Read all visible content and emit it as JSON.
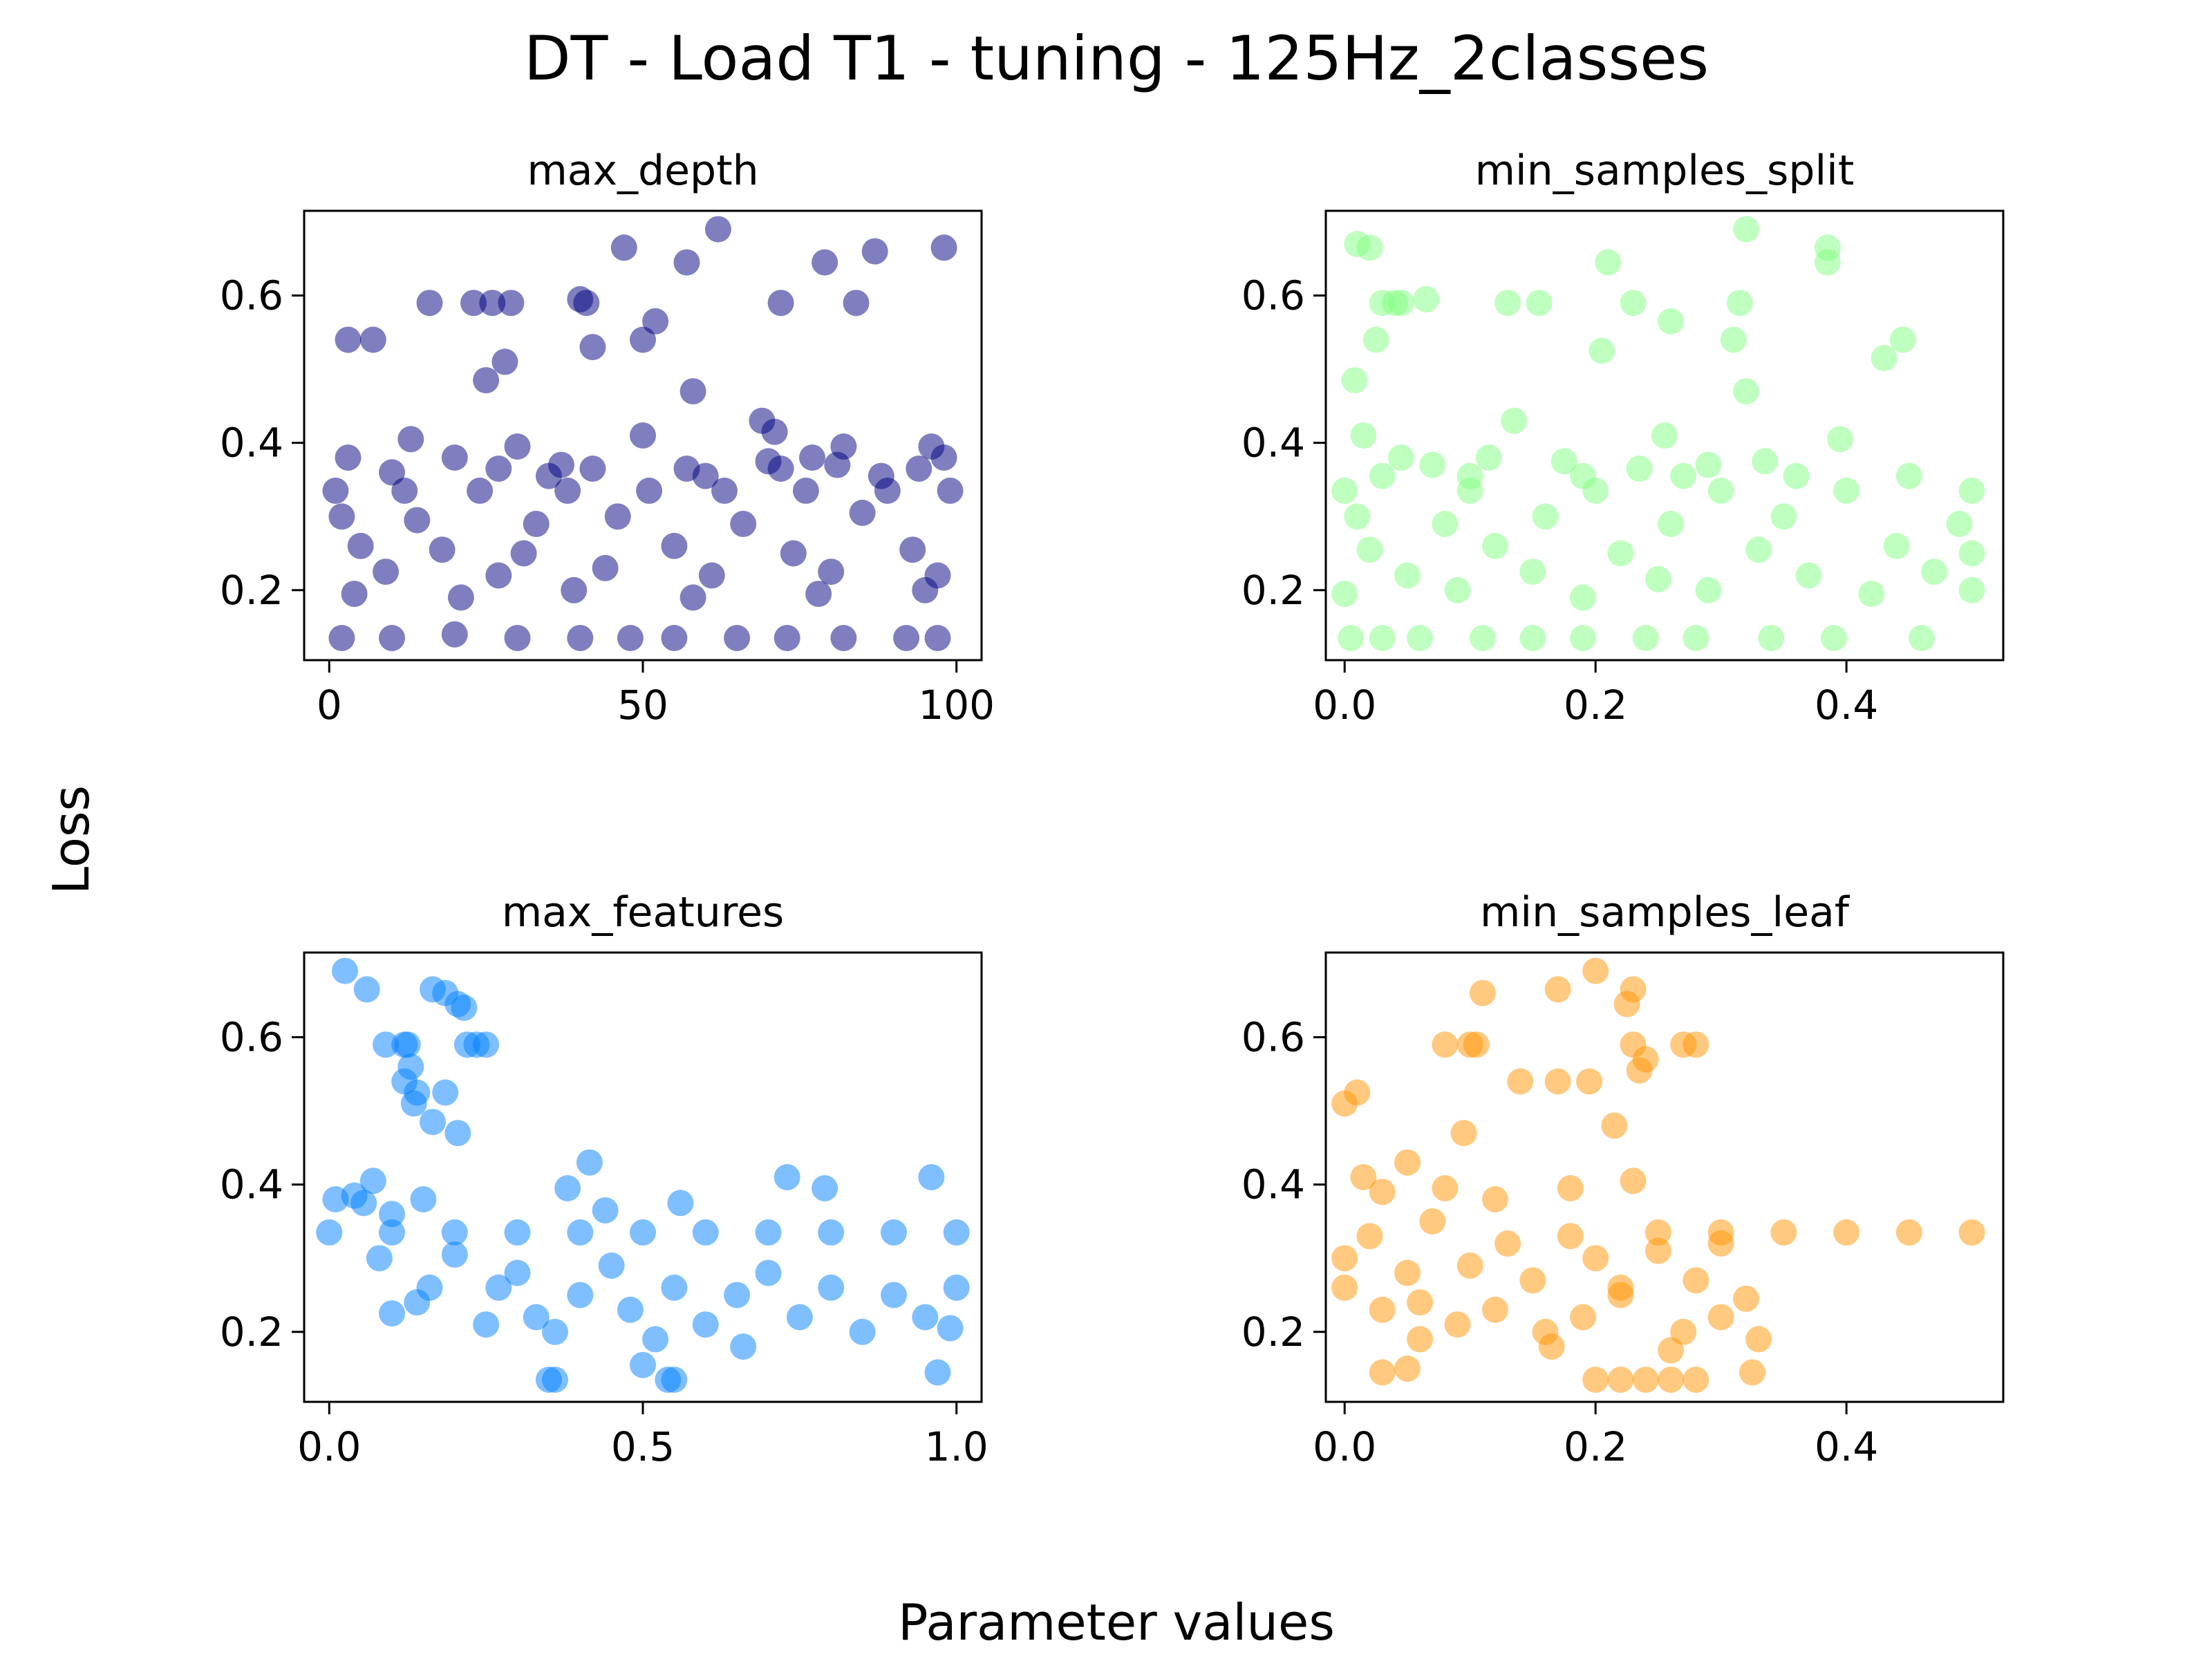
{
  "figure": {
    "title": "DT - Load T1 - tuning - 125Hz_2classes",
    "xlabel": "Parameter values",
    "ylabel": "Loss"
  },
  "chart_data": [
    {
      "type": "scatter",
      "title": "max_depth",
      "color": "#000080",
      "xlim": [
        -4,
        104
      ],
      "ylim": [
        0.105,
        0.715
      ],
      "xticks": [
        0,
        50,
        100
      ],
      "xtick_labels": [
        "0",
        "50",
        "100"
      ],
      "yticks": [
        0.2,
        0.4,
        0.6
      ],
      "ytick_labels": [
        "0.2",
        "0.4",
        "0.6"
      ],
      "grid": false,
      "points": [
        [
          3,
          0.54
        ],
        [
          7,
          0.54
        ],
        [
          16,
          0.59
        ],
        [
          23,
          0.59
        ],
        [
          26,
          0.59
        ],
        [
          29,
          0.59
        ],
        [
          40,
          0.595
        ],
        [
          41,
          0.59
        ],
        [
          25,
          0.485
        ],
        [
          28,
          0.51
        ],
        [
          42,
          0.53
        ],
        [
          50,
          0.54
        ],
        [
          52,
          0.565
        ],
        [
          47,
          0.665
        ],
        [
          57,
          0.645
        ],
        [
          62,
          0.69
        ],
        [
          58,
          0.47
        ],
        [
          72,
          0.59
        ],
        [
          79,
          0.645
        ],
        [
          84,
          0.59
        ],
        [
          87,
          0.66
        ],
        [
          98,
          0.665
        ],
        [
          13,
          0.405
        ],
        [
          50,
          0.41
        ],
        [
          69,
          0.43
        ],
        [
          71,
          0.415
        ],
        [
          96,
          0.395
        ],
        [
          3,
          0.38
        ],
        [
          20,
          0.38
        ],
        [
          27,
          0.365
        ],
        [
          30,
          0.395
        ],
        [
          37,
          0.37
        ],
        [
          42,
          0.365
        ],
        [
          57,
          0.365
        ],
        [
          70,
          0.375
        ],
        [
          72,
          0.365
        ],
        [
          77,
          0.38
        ],
        [
          82,
          0.395
        ],
        [
          81,
          0.37
        ],
        [
          94,
          0.365
        ],
        [
          98,
          0.38
        ],
        [
          10,
          0.36
        ],
        [
          35,
          0.355
        ],
        [
          60,
          0.355
        ],
        [
          88,
          0.355
        ],
        [
          1,
          0.335
        ],
        [
          12,
          0.335
        ],
        [
          24,
          0.335
        ],
        [
          38,
          0.335
        ],
        [
          51,
          0.335
        ],
        [
          63,
          0.335
        ],
        [
          76,
          0.335
        ],
        [
          89,
          0.335
        ],
        [
          99,
          0.335
        ],
        [
          2,
          0.3
        ],
        [
          14,
          0.295
        ],
        [
          33,
          0.29
        ],
        [
          46,
          0.3
        ],
        [
          66,
          0.29
        ],
        [
          85,
          0.305
        ],
        [
          5,
          0.26
        ],
        [
          18,
          0.255
        ],
        [
          31,
          0.25
        ],
        [
          55,
          0.26
        ],
        [
          74,
          0.25
        ],
        [
          93,
          0.255
        ],
        [
          9,
          0.225
        ],
        [
          27,
          0.22
        ],
        [
          44,
          0.23
        ],
        [
          61,
          0.22
        ],
        [
          80,
          0.225
        ],
        [
          97,
          0.22
        ],
        [
          4,
          0.195
        ],
        [
          21,
          0.19
        ],
        [
          39,
          0.2
        ],
        [
          58,
          0.19
        ],
        [
          78,
          0.195
        ],
        [
          95,
          0.2
        ],
        [
          2,
          0.135
        ],
        [
          10,
          0.135
        ],
        [
          20,
          0.14
        ],
        [
          30,
          0.135
        ],
        [
          40,
          0.135
        ],
        [
          48,
          0.135
        ],
        [
          55,
          0.135
        ],
        [
          65,
          0.135
        ],
        [
          73,
          0.135
        ],
        [
          82,
          0.135
        ],
        [
          92,
          0.135
        ],
        [
          97,
          0.135
        ]
      ]
    },
    {
      "type": "scatter",
      "title": "min_samples_split",
      "color": "#80ff80",
      "xlim": [
        -0.015,
        0.525
      ],
      "ylim": [
        0.105,
        0.715
      ],
      "xticks": [
        0.0,
        0.2,
        0.4
      ],
      "xtick_labels": [
        "0.0",
        "0.2",
        "0.4"
      ],
      "yticks": [
        0.2,
        0.4,
        0.6
      ],
      "ytick_labels": [
        "0.2",
        "0.4",
        "0.6"
      ],
      "grid": false,
      "points": [
        [
          0.01,
          0.67
        ],
        [
          0.02,
          0.665
        ],
        [
          0.03,
          0.59
        ],
        [
          0.04,
          0.59
        ],
        [
          0.045,
          0.59
        ],
        [
          0.065,
          0.595
        ],
        [
          0.13,
          0.59
        ],
        [
          0.155,
          0.59
        ],
        [
          0.21,
          0.645
        ],
        [
          0.23,
          0.59
        ],
        [
          0.26,
          0.565
        ],
        [
          0.315,
          0.59
        ],
        [
          0.32,
          0.69
        ],
        [
          0.385,
          0.665
        ],
        [
          0.385,
          0.645
        ],
        [
          0.025,
          0.54
        ],
        [
          0.008,
          0.485
        ],
        [
          0.205,
          0.525
        ],
        [
          0.31,
          0.54
        ],
        [
          0.43,
          0.515
        ],
        [
          0.445,
          0.54
        ],
        [
          0.32,
          0.47
        ],
        [
          0.015,
          0.41
        ],
        [
          0.045,
          0.38
        ],
        [
          0.135,
          0.43
        ],
        [
          0.255,
          0.41
        ],
        [
          0.395,
          0.405
        ],
        [
          0.07,
          0.37
        ],
        [
          0.115,
          0.38
        ],
        [
          0.175,
          0.375
        ],
        [
          0.235,
          0.365
        ],
        [
          0.29,
          0.37
        ],
        [
          0.335,
          0.375
        ],
        [
          0.03,
          0.355
        ],
        [
          0.1,
          0.355
        ],
        [
          0.19,
          0.355
        ],
        [
          0.27,
          0.355
        ],
        [
          0.36,
          0.355
        ],
        [
          0.45,
          0.355
        ],
        [
          0.0,
          0.335
        ],
        [
          0.1,
          0.335
        ],
        [
          0.2,
          0.335
        ],
        [
          0.3,
          0.335
        ],
        [
          0.4,
          0.335
        ],
        [
          0.5,
          0.335
        ],
        [
          0.01,
          0.3
        ],
        [
          0.08,
          0.29
        ],
        [
          0.16,
          0.3
        ],
        [
          0.26,
          0.29
        ],
        [
          0.35,
          0.3
        ],
        [
          0.49,
          0.29
        ],
        [
          0.02,
          0.255
        ],
        [
          0.12,
          0.26
        ],
        [
          0.22,
          0.25
        ],
        [
          0.33,
          0.255
        ],
        [
          0.44,
          0.26
        ],
        [
          0.5,
          0.25
        ],
        [
          0.05,
          0.22
        ],
        [
          0.15,
          0.225
        ],
        [
          0.25,
          0.215
        ],
        [
          0.37,
          0.22
        ],
        [
          0.47,
          0.225
        ],
        [
          0.0,
          0.195
        ],
        [
          0.09,
          0.2
        ],
        [
          0.19,
          0.19
        ],
        [
          0.29,
          0.2
        ],
        [
          0.42,
          0.195
        ],
        [
          0.5,
          0.2
        ],
        [
          0.005,
          0.135
        ],
        [
          0.03,
          0.135
        ],
        [
          0.06,
          0.135
        ],
        [
          0.11,
          0.135
        ],
        [
          0.15,
          0.135
        ],
        [
          0.19,
          0.135
        ],
        [
          0.24,
          0.135
        ],
        [
          0.28,
          0.135
        ],
        [
          0.34,
          0.135
        ],
        [
          0.39,
          0.135
        ],
        [
          0.46,
          0.135
        ]
      ]
    },
    {
      "type": "scatter",
      "title": "max_features",
      "color": "#0080ff",
      "xlim": [
        -0.04,
        1.04
      ],
      "ylim": [
        0.105,
        0.715
      ],
      "xticks": [
        0.0,
        0.5,
        1.0
      ],
      "xtick_labels": [
        "0.0",
        "0.5",
        "1.0"
      ],
      "yticks": [
        0.2,
        0.4,
        0.6
      ],
      "ytick_labels": [
        "0.2",
        "0.4",
        "0.6"
      ],
      "grid": false,
      "points": [
        [
          0.025,
          0.69
        ],
        [
          0.06,
          0.665
        ],
        [
          0.165,
          0.665
        ],
        [
          0.185,
          0.66
        ],
        [
          0.205,
          0.645
        ],
        [
          0.215,
          0.64
        ],
        [
          0.09,
          0.59
        ],
        [
          0.12,
          0.59
        ],
        [
          0.125,
          0.59
        ],
        [
          0.22,
          0.59
        ],
        [
          0.235,
          0.59
        ],
        [
          0.25,
          0.59
        ],
        [
          0.13,
          0.56
        ],
        [
          0.12,
          0.54
        ],
        [
          0.14,
          0.525
        ],
        [
          0.185,
          0.525
        ],
        [
          0.135,
          0.51
        ],
        [
          0.165,
          0.485
        ],
        [
          0.205,
          0.47
        ],
        [
          0.01,
          0.38
        ],
        [
          0.04,
          0.385
        ],
        [
          0.07,
          0.405
        ],
        [
          0.1,
          0.36
        ],
        [
          0.15,
          0.38
        ],
        [
          0.055,
          0.375
        ],
        [
          0.38,
          0.395
        ],
        [
          0.415,
          0.43
        ],
        [
          0.56,
          0.375
        ],
        [
          0.73,
          0.41
        ],
        [
          0.79,
          0.395
        ],
        [
          0.96,
          0.41
        ],
        [
          0.0,
          0.335
        ],
        [
          0.1,
          0.335
        ],
        [
          0.2,
          0.335
        ],
        [
          0.3,
          0.335
        ],
        [
          0.4,
          0.335
        ],
        [
          0.5,
          0.335
        ],
        [
          0.6,
          0.335
        ],
        [
          0.7,
          0.335
        ],
        [
          0.8,
          0.335
        ],
        [
          0.9,
          0.335
        ],
        [
          1.0,
          0.335
        ],
        [
          0.44,
          0.365
        ],
        [
          0.08,
          0.3
        ],
        [
          0.2,
          0.305
        ],
        [
          0.14,
          0.24
        ],
        [
          0.1,
          0.225
        ],
        [
          0.16,
          0.26
        ],
        [
          0.27,
          0.26
        ],
        [
          0.25,
          0.21
        ],
        [
          0.3,
          0.28
        ],
        [
          0.33,
          0.22
        ],
        [
          0.36,
          0.2
        ],
        [
          0.4,
          0.25
        ],
        [
          0.45,
          0.29
        ],
        [
          0.48,
          0.23
        ],
        [
          0.52,
          0.19
        ],
        [
          0.55,
          0.26
        ],
        [
          0.6,
          0.21
        ],
        [
          0.65,
          0.25
        ],
        [
          0.7,
          0.28
        ],
        [
          0.75,
          0.22
        ],
        [
          0.8,
          0.26
        ],
        [
          0.85,
          0.2
        ],
        [
          0.9,
          0.25
        ],
        [
          0.95,
          0.22
        ],
        [
          1.0,
          0.26
        ],
        [
          0.5,
          0.155
        ],
        [
          0.97,
          0.145
        ],
        [
          0.66,
          0.18
        ],
        [
          0.99,
          0.205
        ],
        [
          0.35,
          0.135
        ],
        [
          0.36,
          0.135
        ],
        [
          0.54,
          0.135
        ],
        [
          0.55,
          0.135
        ]
      ]
    },
    {
      "type": "scatter",
      "title": "min_samples_leaf",
      "color": "#ff9400",
      "xlim": [
        -0.015,
        0.525
      ],
      "ylim": [
        0.105,
        0.715
      ],
      "xticks": [
        0.0,
        0.2,
        0.4
      ],
      "xtick_labels": [
        "0.0",
        "0.2",
        "0.4"
      ],
      "yticks": [
        0.2,
        0.4,
        0.6
      ],
      "ytick_labels": [
        "0.2",
        "0.4",
        "0.6"
      ],
      "grid": false,
      "points": [
        [
          0.11,
          0.66
        ],
        [
          0.17,
          0.665
        ],
        [
          0.2,
          0.69
        ],
        [
          0.23,
          0.665
        ],
        [
          0.225,
          0.645
        ],
        [
          0.08,
          0.59
        ],
        [
          0.1,
          0.59
        ],
        [
          0.105,
          0.59
        ],
        [
          0.23,
          0.59
        ],
        [
          0.27,
          0.59
        ],
        [
          0.28,
          0.59
        ],
        [
          0.24,
          0.57
        ],
        [
          0.235,
          0.555
        ],
        [
          0.14,
          0.54
        ],
        [
          0.17,
          0.54
        ],
        [
          0.195,
          0.54
        ],
        [
          0.0,
          0.51
        ],
        [
          0.01,
          0.525
        ],
        [
          0.095,
          0.47
        ],
        [
          0.215,
          0.48
        ],
        [
          0.015,
          0.41
        ],
        [
          0.05,
          0.43
        ],
        [
          0.03,
          0.39
        ],
        [
          0.08,
          0.395
        ],
        [
          0.12,
          0.38
        ],
        [
          0.18,
          0.395
        ],
        [
          0.23,
          0.405
        ],
        [
          0.0,
          0.3
        ],
        [
          0.02,
          0.33
        ],
        [
          0.05,
          0.28
        ],
        [
          0.07,
          0.35
        ],
        [
          0.1,
          0.29
        ],
        [
          0.13,
          0.32
        ],
        [
          0.15,
          0.27
        ],
        [
          0.18,
          0.33
        ],
        [
          0.2,
          0.3
        ],
        [
          0.22,
          0.26
        ],
        [
          0.25,
          0.31
        ],
        [
          0.28,
          0.27
        ],
        [
          0.3,
          0.32
        ],
        [
          0.0,
          0.26
        ],
        [
          0.03,
          0.23
        ],
        [
          0.06,
          0.24
        ],
        [
          0.09,
          0.21
        ],
        [
          0.12,
          0.23
        ],
        [
          0.16,
          0.2
        ],
        [
          0.19,
          0.22
        ],
        [
          0.22,
          0.25
        ],
        [
          0.27,
          0.2
        ],
        [
          0.3,
          0.22
        ],
        [
          0.33,
          0.19
        ],
        [
          0.32,
          0.245
        ],
        [
          0.25,
          0.335
        ],
        [
          0.3,
          0.335
        ],
        [
          0.35,
          0.335
        ],
        [
          0.4,
          0.335
        ],
        [
          0.45,
          0.335
        ],
        [
          0.5,
          0.335
        ],
        [
          0.06,
          0.19
        ],
        [
          0.03,
          0.145
        ],
        [
          0.05,
          0.15
        ],
        [
          0.165,
          0.18
        ],
        [
          0.26,
          0.175
        ],
        [
          0.325,
          0.145
        ],
        [
          0.2,
          0.135
        ],
        [
          0.22,
          0.135
        ],
        [
          0.24,
          0.135
        ],
        [
          0.26,
          0.135
        ],
        [
          0.28,
          0.135
        ]
      ]
    }
  ]
}
